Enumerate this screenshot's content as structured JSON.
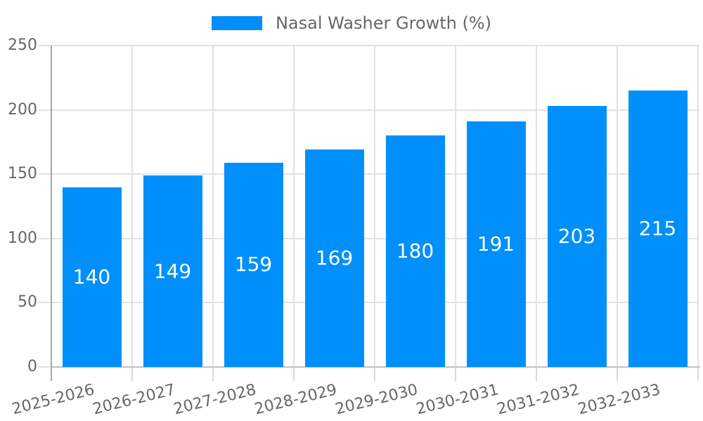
{
  "chart_data": {
    "type": "bar",
    "title": "Nasal Washer Growth (%)",
    "legend_position": "top",
    "grid": true,
    "xlabel": "",
    "ylabel": "",
    "categories": [
      "2025-2026",
      "2026-2027",
      "2027-2028",
      "2028-2029",
      "2029-2030",
      "2030-2031",
      "2031-2032",
      "2032-2033"
    ],
    "series": [
      {
        "name": "Nasal Washer Growth (%)",
        "values": [
          140,
          149,
          159,
          169,
          180,
          191,
          203,
          215
        ]
      }
    ],
    "value_labels": [
      "140",
      "149",
      "159",
      "169",
      "180",
      "191",
      "203",
      "215"
    ],
    "ylim": [
      0,
      250
    ],
    "yticks": [
      0,
      50,
      100,
      150,
      200,
      250
    ],
    "ytick_labels": [
      "0",
      "50",
      "100",
      "150",
      "200",
      "250"
    ],
    "colors": {
      "bar": "#008FFB",
      "bar_label": "#FFFFFF",
      "axis_text": "#666666",
      "grid": "#E2E2E2",
      "tick": "#D9D9D9",
      "y_axis_line": "#A5A5A5",
      "x_axis_line": "#C0C0C0"
    }
  }
}
